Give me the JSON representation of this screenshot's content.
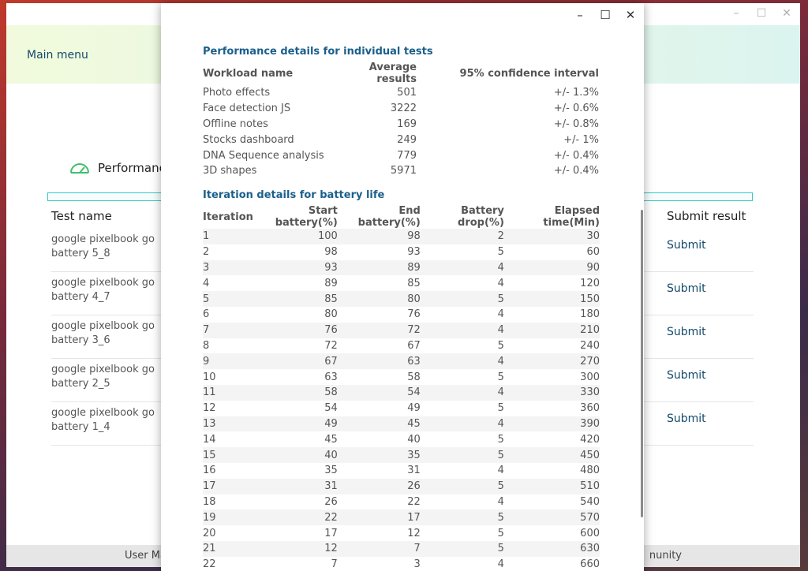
{
  "background_window": {
    "controls": [
      "–",
      "☐",
      "✕"
    ],
    "main_menu": "Main menu",
    "performance_title": "Performanc",
    "test_name_header": "Test name",
    "submit_result_header": "Submit result",
    "rows": [
      {
        "name": "google pixelbook go battery 5_8",
        "submit": "Submit"
      },
      {
        "name": "google pixelbook go battery 4_7",
        "submit": "Submit"
      },
      {
        "name": "google pixelbook go battery 3_6",
        "submit": "Submit"
      },
      {
        "name": "google pixelbook go battery 2_5",
        "submit": "Submit"
      },
      {
        "name": "google pixelbook go battery 1_4",
        "submit": "Submit"
      }
    ],
    "footer_left": "User Ma",
    "footer_right": "nunity"
  },
  "dialog": {
    "controls": [
      "–",
      "☐",
      "✕"
    ],
    "perf_section_title": "Performance details for individual tests",
    "perf_headers": [
      "Workload name",
      "Average results",
      "95% confidence interval"
    ],
    "perf_rows": [
      [
        "Photo effects",
        "501",
        "+/- 1.3%"
      ],
      [
        "Face detection JS",
        "3222",
        "+/- 0.6%"
      ],
      [
        "Offline notes",
        "169",
        "+/- 0.8%"
      ],
      [
        "Stocks dashboard",
        "249",
        "+/- 1%"
      ],
      [
        "DNA Sequence analysis",
        "779",
        "+/- 0.4%"
      ],
      [
        "3D shapes",
        "5971",
        "+/- 0.4%"
      ]
    ],
    "iter_section_title": "Iteration details for battery life",
    "iter_headers": [
      "Iteration",
      "Start battery(%)",
      "End battery(%)",
      "Battery drop(%)",
      "Elapsed time(Min)"
    ],
    "iter_rows": [
      [
        "1",
        "100",
        "98",
        "2",
        "30"
      ],
      [
        "2",
        "98",
        "93",
        "5",
        "60"
      ],
      [
        "3",
        "93",
        "89",
        "4",
        "90"
      ],
      [
        "4",
        "89",
        "85",
        "4",
        "120"
      ],
      [
        "5",
        "85",
        "80",
        "5",
        "150"
      ],
      [
        "6",
        "80",
        "76",
        "4",
        "180"
      ],
      [
        "7",
        "76",
        "72",
        "4",
        "210"
      ],
      [
        "8",
        "72",
        "67",
        "5",
        "240"
      ],
      [
        "9",
        "67",
        "63",
        "4",
        "270"
      ],
      [
        "10",
        "63",
        "58",
        "5",
        "300"
      ],
      [
        "11",
        "58",
        "54",
        "4",
        "330"
      ],
      [
        "12",
        "54",
        "49",
        "5",
        "360"
      ],
      [
        "13",
        "49",
        "45",
        "4",
        "390"
      ],
      [
        "14",
        "45",
        "40",
        "5",
        "420"
      ],
      [
        "15",
        "40",
        "35",
        "5",
        "450"
      ],
      [
        "16",
        "35",
        "31",
        "4",
        "480"
      ],
      [
        "17",
        "31",
        "26",
        "5",
        "510"
      ],
      [
        "18",
        "26",
        "22",
        "4",
        "540"
      ],
      [
        "19",
        "22",
        "17",
        "5",
        "570"
      ],
      [
        "20",
        "17",
        "12",
        "5",
        "600"
      ],
      [
        "21",
        "12",
        "7",
        "5",
        "630"
      ],
      [
        "22",
        "7",
        "3",
        "4",
        "660"
      ]
    ]
  },
  "colors": {
    "accent_link": "#134a6b",
    "section_title": "#1a5f8c",
    "teal_bar": "#39c7c4",
    "gauge_green": "#3fbf6a"
  }
}
